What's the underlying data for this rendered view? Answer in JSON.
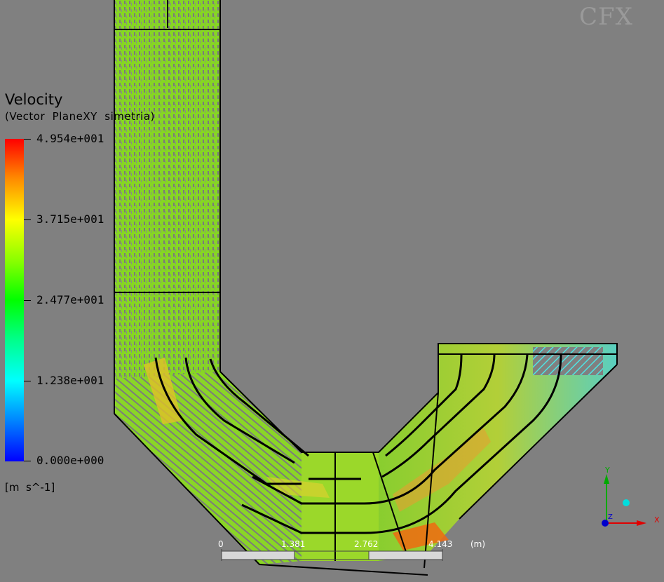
{
  "legend": {
    "title": "Velocity",
    "subtitle": "(Vector  PlaneXY  simetria)",
    "ticks": [
      "4.954e+001",
      "3.715e+001",
      "2.477e+001",
      "1.238e+001",
      "0.000e+000"
    ],
    "units": "[m  s^-1]"
  },
  "logo": {
    "text": "CFX"
  },
  "scale_bar": {
    "labels": [
      "0",
      "1.381",
      "2.762",
      "4.143"
    ],
    "unit": "(m)"
  },
  "axes": {
    "x": "X",
    "y": "Y",
    "z": "Z"
  },
  "colors": {
    "background": "#808080",
    "vector_green": "#7ddc1f",
    "vector_yellow": "#d8d020",
    "vector_orange": "#f0a020",
    "vector_cyan": "#40e0e0",
    "outline": "#000000"
  }
}
